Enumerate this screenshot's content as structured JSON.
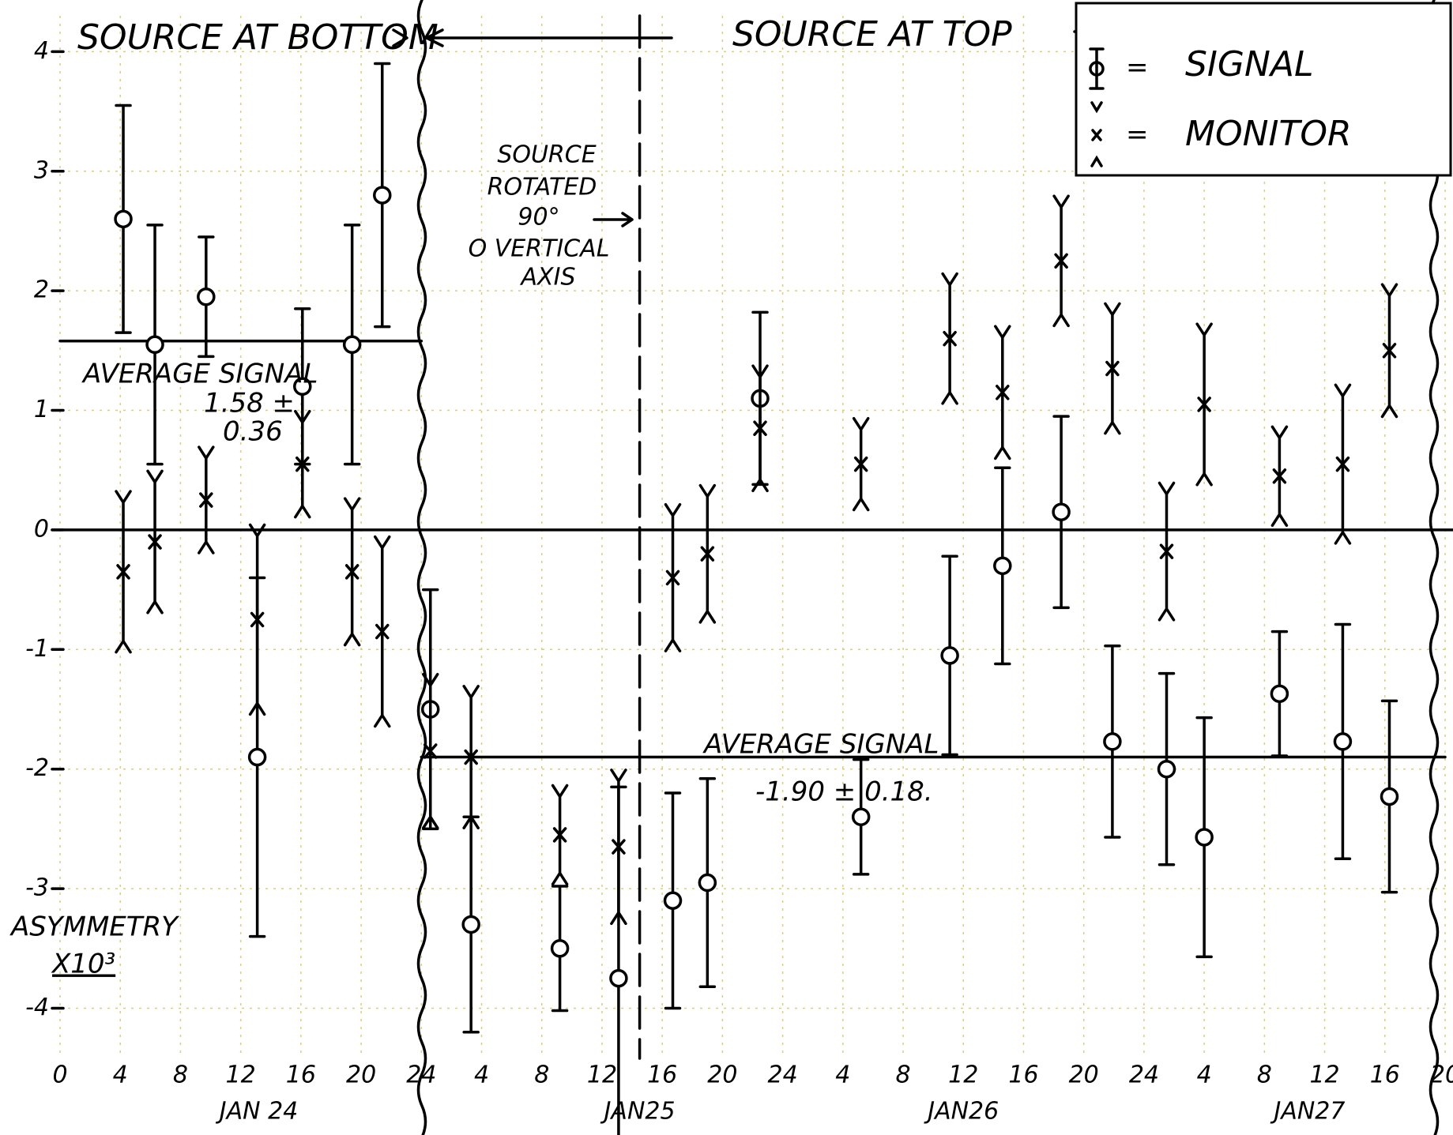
{
  "chart_data": {
    "type": "errorbar",
    "x": [
      4.2,
      6.3,
      9.7,
      13.1,
      16.1,
      19.4,
      21.4,
      24.6,
      27.3,
      33.2,
      37.1,
      40.7,
      43.0,
      46.5,
      53.2,
      59.1,
      62.6,
      66.5,
      69.9,
      73.5,
      76.0,
      81.0,
      85.2,
      88.3
    ],
    "series": [
      {
        "name": "SIGNAL",
        "marker": "circle",
        "color": "#000000",
        "values": [
          2.6,
          1.55,
          1.95,
          -1.9,
          1.2,
          1.55,
          2.8,
          -1.5,
          -3.3,
          -3.5,
          -3.75,
          -3.1,
          -2.95,
          1.1,
          -2.4,
          -1.05,
          -0.3,
          0.15,
          -1.77,
          -2.0,
          -2.57,
          -1.37,
          -1.77,
          -2.23
        ],
        "errors": [
          0.95,
          1.0,
          0.5,
          1.5,
          0.65,
          1.0,
          1.1,
          1.0,
          0.9,
          0.52,
          1.6,
          0.9,
          0.87,
          0.72,
          0.48,
          0.83,
          0.82,
          0.8,
          0.8,
          0.8,
          1.0,
          0.52,
          0.98,
          0.8
        ]
      },
      {
        "name": "MONITOR",
        "marker": "x",
        "color": "#000000",
        "values": [
          -0.35,
          -0.1,
          0.25,
          -0.75,
          0.55,
          -0.35,
          -0.85,
          -1.85,
          -1.9,
          -2.55,
          -2.65,
          -0.4,
          -0.2,
          0.85,
          0.55,
          1.6,
          1.15,
          2.25,
          1.35,
          -0.18,
          1.05,
          0.45,
          0.55,
          1.5
        ],
        "errors": [
          0.58,
          0.5,
          0.35,
          0.7,
          0.35,
          0.52,
          0.7,
          0.55,
          0.5,
          0.32,
          0.55,
          0.52,
          0.48,
          0.43,
          0.29,
          0.45,
          0.46,
          0.45,
          0.45,
          0.48,
          0.58,
          0.32,
          0.57,
          0.46
        ]
      }
    ],
    "legend_sep": "=",
    "xlim": [
      0,
      92
    ],
    "ylim": [
      -4.4,
      4.3
    ],
    "xticks": [
      0,
      4,
      8,
      12,
      16,
      20,
      24,
      {
        "value": 28,
        "label": "4"
      },
      {
        "value": 32,
        "label": "8"
      },
      {
        "value": 36,
        "label": "12"
      },
      {
        "value": 40,
        "label": "16"
      },
      {
        "value": 44,
        "label": "20"
      },
      {
        "value": 48,
        "label": "24"
      },
      {
        "value": 52,
        "label": "4"
      },
      {
        "value": 56,
        "label": "8"
      },
      {
        "value": 60,
        "label": "12"
      },
      {
        "value": 64,
        "label": "16"
      },
      {
        "value": 68,
        "label": "20"
      },
      {
        "value": 72,
        "label": "24"
      },
      {
        "value": 76,
        "label": "4"
      },
      {
        "value": 80,
        "label": "8"
      },
      {
        "value": 84,
        "label": "12"
      },
      {
        "value": 88,
        "label": "16"
      },
      {
        "value": 92,
        "label": "20"
      }
    ],
    "yticks": [
      -4,
      -3,
      -2,
      -1,
      0,
      1,
      2,
      3,
      4
    ],
    "grid": true,
    "date_labels": [
      {
        "label": "JAN 24",
        "x": 13.2
      },
      {
        "label": "JAN25",
        "x": 38.5
      },
      {
        "label": "JAN26",
        "x": 60
      },
      {
        "label": "JAN27",
        "x": 83
      }
    ],
    "y_label": [
      "ASYMMETRY",
      "X10³"
    ],
    "region_labels": [
      "SOURCE AT BOTTOM",
      "SOURCE AT TOP"
    ],
    "rotation": {
      "text": [
        "SOURCE",
        "ROTATED",
        "90°",
        "O VERTICAL",
        "AXIS"
      ],
      "x": 38.5
    },
    "averages": [
      {
        "label": "AVERAGE SIGNAL",
        "value_text": [
          "1.58 ±",
          "0.36"
        ],
        "value": 1.58,
        "from": 0,
        "to": 24
      },
      {
        "label": "AVERAGE SIGNAL",
        "value_text": [
          "-1.90 ± 0.18."
        ],
        "value": -1.9,
        "from": 24,
        "to": 92
      }
    ]
  }
}
